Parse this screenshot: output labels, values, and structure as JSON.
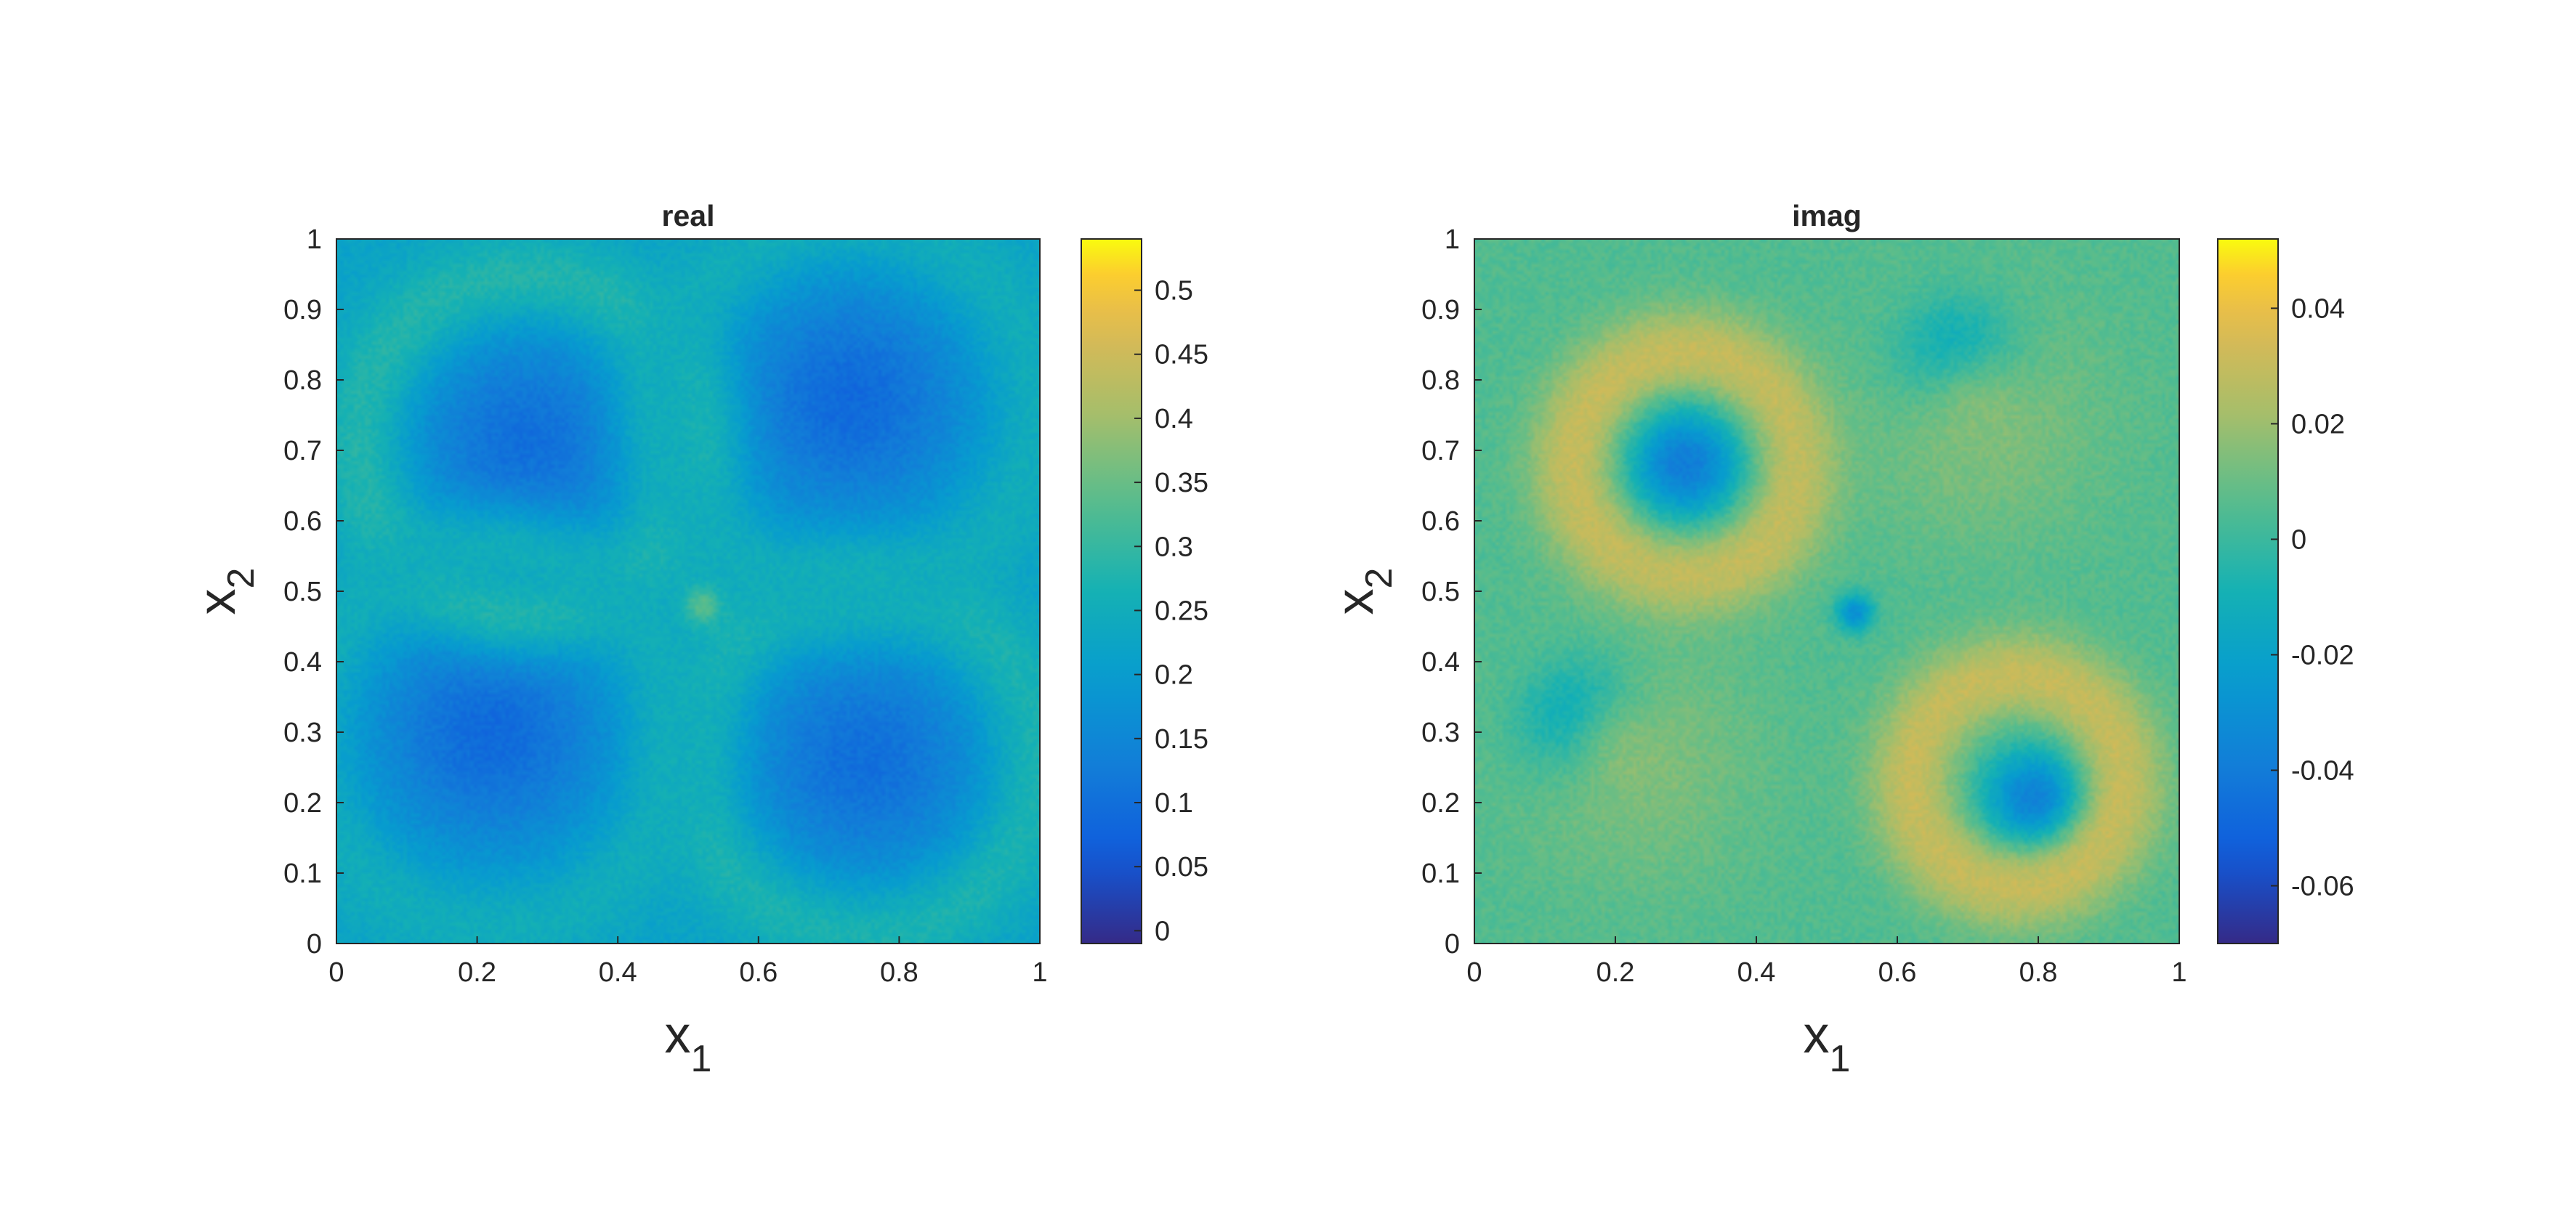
{
  "chart_data": [
    {
      "type": "heatmap",
      "title": "real",
      "xlabel": "x",
      "xlabel_sub": "1",
      "ylabel": "x",
      "ylabel_sub": "2",
      "xlim": [
        0,
        1
      ],
      "ylim": [
        0,
        1
      ],
      "xticks": [
        0,
        0.2,
        0.4,
        0.6,
        0.8,
        1
      ],
      "xtick_labels": [
        "0",
        "0.2",
        "0.4",
        "0.6",
        "0.8",
        "1"
      ],
      "yticks": [
        0,
        0.1,
        0.2,
        0.3,
        0.4,
        0.5,
        0.6,
        0.7,
        0.8,
        0.9,
        1
      ],
      "ytick_labels": [
        "0",
        "0.1",
        "0.2",
        "0.3",
        "0.4",
        "0.5",
        "0.6",
        "0.7",
        "0.8",
        "0.9",
        "1"
      ],
      "colormap": "parula",
      "clim": [
        -0.01,
        0.54
      ],
      "colorbar_ticks": [
        0,
        0.05,
        0.1,
        0.15,
        0.2,
        0.25,
        0.3,
        0.35,
        0.4,
        0.45,
        0.5
      ],
      "colorbar_labels": [
        "0",
        "0.05",
        "0.1",
        "0.15",
        "0.2",
        "0.25",
        "0.3",
        "0.35",
        "0.4",
        "0.45",
        "0.5"
      ],
      "field": {
        "background": 0.22,
        "features": [
          {
            "kind": "blob",
            "cx": 0.27,
            "cy": 0.71,
            "r": 0.19,
            "value": 0.1
          },
          {
            "kind": "blob",
            "cx": 0.73,
            "cy": 0.77,
            "r": 0.2,
            "value": 0.09
          },
          {
            "kind": "blob",
            "cx": 0.22,
            "cy": 0.3,
            "r": 0.2,
            "value": 0.09
          },
          {
            "kind": "blob",
            "cx": 0.75,
            "cy": 0.26,
            "r": 0.2,
            "value": 0.1
          },
          {
            "kind": "ring",
            "cx": 0.27,
            "cy": 0.71,
            "r": 0.24,
            "value": 0.28
          },
          {
            "kind": "ring",
            "cx": 0.75,
            "cy": 0.26,
            "r": 0.25,
            "value": 0.27
          },
          {
            "kind": "ring",
            "cx": 0.22,
            "cy": 0.29,
            "r": 0.27,
            "value": 0.25
          },
          {
            "kind": "ring",
            "cx": 0.73,
            "cy": 0.76,
            "r": 0.27,
            "value": 0.25
          },
          {
            "kind": "spot",
            "cx": 0.52,
            "cy": 0.48,
            "r": 0.03,
            "value": 0.34
          }
        ]
      }
    },
    {
      "type": "heatmap",
      "title": "imag",
      "xlabel": "x",
      "xlabel_sub": "1",
      "ylabel": "x",
      "ylabel_sub": "2",
      "xlim": [
        0,
        1
      ],
      "ylim": [
        0,
        1
      ],
      "xticks": [
        0,
        0.2,
        0.4,
        0.6,
        0.8,
        1
      ],
      "xtick_labels": [
        "0",
        "0.2",
        "0.4",
        "0.6",
        "0.8",
        "1"
      ],
      "yticks": [
        0,
        0.1,
        0.2,
        0.3,
        0.4,
        0.5,
        0.6,
        0.7,
        0.8,
        0.9,
        1
      ],
      "ytick_labels": [
        "0",
        "0.1",
        "0.2",
        "0.3",
        "0.4",
        "0.5",
        "0.6",
        "0.7",
        "0.8",
        "0.9",
        "1"
      ],
      "colormap": "parula",
      "clim": [
        -0.07,
        0.052
      ],
      "colorbar_ticks": [
        -0.06,
        -0.04,
        -0.02,
        0,
        0.02,
        0.04
      ],
      "colorbar_labels": [
        "-0.06",
        "-0.04",
        "-0.02",
        "0",
        "0.02",
        "0.04"
      ],
      "field": {
        "background": 0.005,
        "features": [
          {
            "kind": "blob",
            "cx": 0.3,
            "cy": 0.68,
            "r": 0.1,
            "value": -0.04
          },
          {
            "kind": "ring",
            "cx": 0.3,
            "cy": 0.68,
            "r": 0.16,
            "value": 0.03
          },
          {
            "kind": "blob",
            "cx": 0.69,
            "cy": 0.82,
            "r": 0.09,
            "value": -0.06
          },
          {
            "kind": "blob",
            "cx": 0.72,
            "cy": 0.74,
            "r": 0.2,
            "value": 0.015
          },
          {
            "kind": "blob",
            "cx": 0.16,
            "cy": 0.31,
            "r": 0.09,
            "value": -0.06
          },
          {
            "kind": "blob",
            "cx": 0.23,
            "cy": 0.26,
            "r": 0.2,
            "value": 0.015
          },
          {
            "kind": "blob",
            "cx": 0.8,
            "cy": 0.2,
            "r": 0.09,
            "value": -0.04
          },
          {
            "kind": "ring",
            "cx": 0.77,
            "cy": 0.23,
            "r": 0.15,
            "value": 0.03
          },
          {
            "kind": "spot",
            "cx": 0.54,
            "cy": 0.47,
            "r": 0.03,
            "value": -0.03
          }
        ]
      }
    }
  ]
}
